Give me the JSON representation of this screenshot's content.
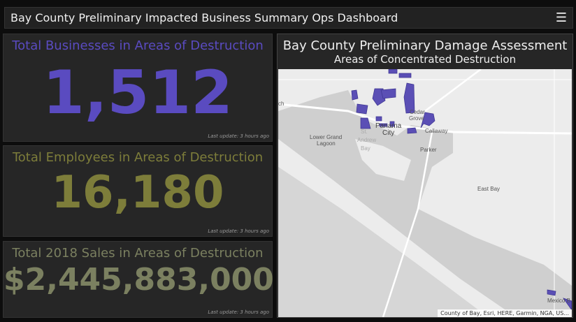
{
  "header": {
    "title": "Bay County Preliminary Impacted Business Summary Ops Dashboard",
    "menu_icon": "hamburger-icon"
  },
  "indicators": [
    {
      "title": "Total Businesses in Areas of Destruction",
      "value": "1,512",
      "update": "Last update: 3 hours ago",
      "color": "#5a4bc0"
    },
    {
      "title": "Total Employees in Areas of Destruction",
      "value": "16,180",
      "update": "Last update: 3 hours ago",
      "color": "#7d7d3a"
    },
    {
      "title": "Total 2018 Sales in Areas of Destruction",
      "value": "$2,445,883,000",
      "update": "Last update: 3 hours ago",
      "color": "#7b8060"
    }
  ],
  "map": {
    "title": "Bay County Preliminary Damage Assessment",
    "subtitle": "Areas of Concentrated Destruction",
    "labels": {
      "lower_grand_lagoon": "Lower Grand",
      "lagoon": "Lagoon",
      "st": "St.",
      "andrew": "Andrew",
      "bay": "Bay",
      "panama": "Panama",
      "city": "City",
      "cedar": "Cedar",
      "grove": "Grove",
      "callaway": "Callaway",
      "parker": "Parker",
      "east_bay": "East Bay",
      "mexico_beach": "Mexico B",
      "beach_partial": "ch"
    },
    "attribution": "County of Bay, Esri, HERE, Garmin, NGA, US...",
    "polygon_color": "#5b4fb5"
  }
}
